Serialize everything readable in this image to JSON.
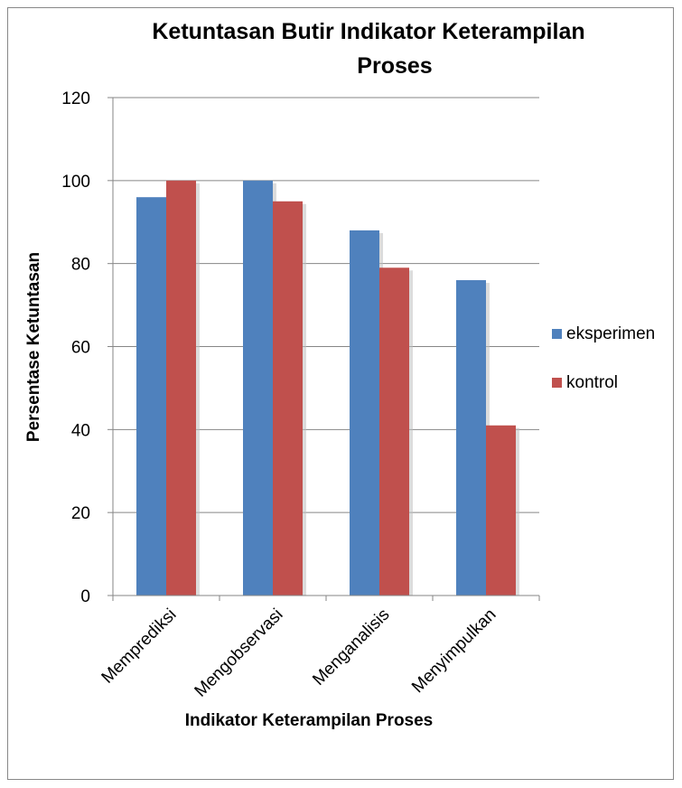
{
  "chart_data": {
    "type": "bar",
    "title": "Ketuntasan Butir Indikator Keterampilan Proses",
    "title_lines": [
      "Ketuntasan Butir Indikator Keterampilan",
      "Proses"
    ],
    "xlabel": "Indikator Keterampilan Proses",
    "ylabel": "Persentase Ketuntasan",
    "categories": [
      "Memprediksi",
      "Mengobservasi",
      "Menganalisis",
      "Menyimpulkan"
    ],
    "series": [
      {
        "name": "eksperimen",
        "values": [
          96,
          100,
          88,
          76
        ],
        "color": "#4F81BD"
      },
      {
        "name": "kontrol",
        "values": [
          100,
          95,
          79,
          41
        ],
        "color": "#C0504D"
      }
    ],
    "ylim": [
      0,
      120
    ],
    "yticks": [
      0,
      20,
      40,
      60,
      80,
      100,
      120
    ],
    "grid": true,
    "legend_position": "right"
  }
}
